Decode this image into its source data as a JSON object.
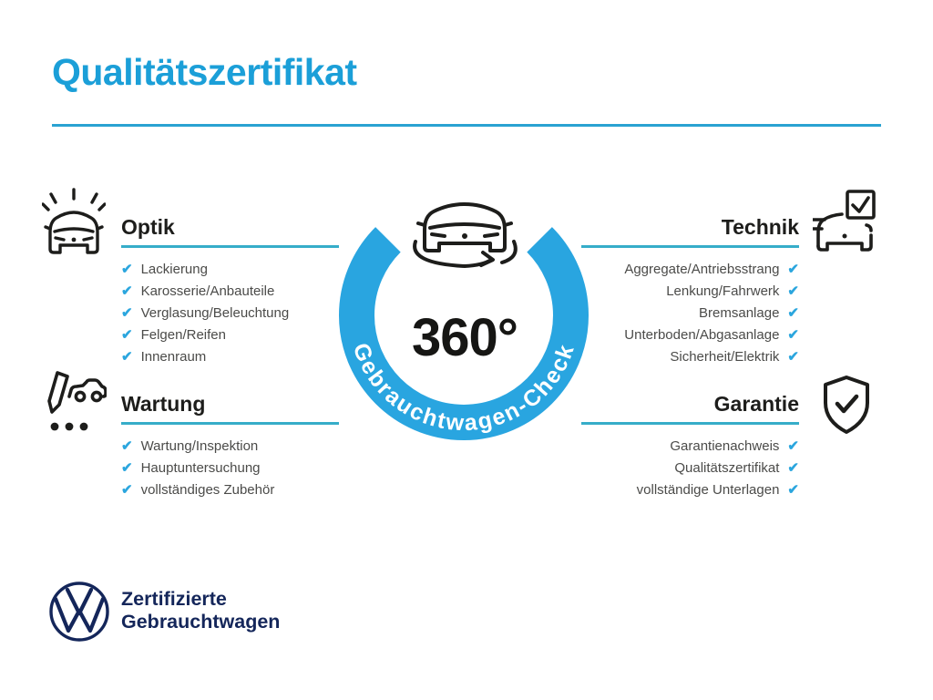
{
  "title": "Qualitätszertifikat",
  "colors": {
    "accent_blue": "#1b9fd8",
    "underline_teal": "#36adc9",
    "check_blue": "#2ba6de",
    "ring_blue": "#29a5e0",
    "heading_dark": "#1d1d1b",
    "item_gray": "#4b4b49",
    "vw_navy": "#14265a"
  },
  "check_glyph": "✔",
  "sections": [
    {
      "id": "optik",
      "title": "Optik",
      "side": "left",
      "icon": "shining-car-icon",
      "items": [
        "Lackierung",
        "Karosserie/Anbauteile",
        "Verglasung/Beleuchtung",
        "Felgen/Reifen",
        "Innenraum"
      ]
    },
    {
      "id": "wartung",
      "title": "Wartung",
      "side": "left",
      "icon": "service-checklist-icon",
      "items": [
        "Wartung/Inspektion",
        "Hauptuntersuchung",
        "vollständiges Zubehör"
      ]
    },
    {
      "id": "technik",
      "title": "Technik",
      "side": "right",
      "icon": "car-checkbox-icon",
      "items": [
        "Aggregate/Antriebsstrang",
        "Lenkung/Fahrwerk",
        "Bremsanlage",
        "Unterboden/Abgasanlage",
        "Sicherheit/Elektrik"
      ]
    },
    {
      "id": "garantie",
      "title": "Garantie",
      "side": "right",
      "icon": "shield-check-icon",
      "items": [
        "Garantienachweis",
        "Qualitätszertifikat",
        "vollständige Unterlagen"
      ]
    }
  ],
  "badge": {
    "degrees": "360°",
    "ring_label": "Gebrauchtwagen-Check",
    "icon": "car-360-rotate-icon"
  },
  "footer": {
    "logo": "vw-logo",
    "line1": "Zertifizierte",
    "line2": "Gebrauchtwagen"
  }
}
